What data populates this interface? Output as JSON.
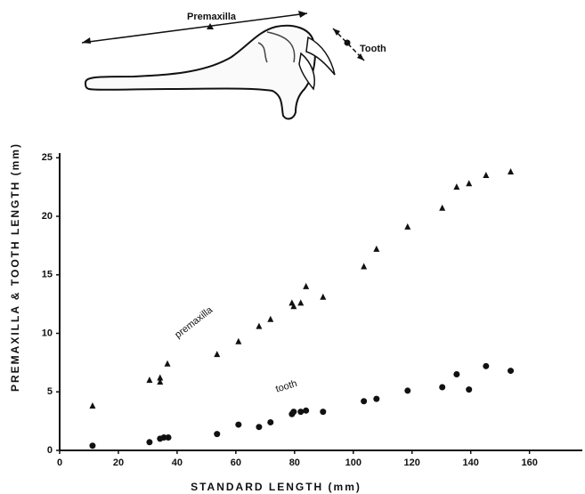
{
  "illustration": {
    "premaxilla_label": "Premaxilla",
    "tooth_label": "Tooth"
  },
  "chart_data": {
    "type": "scatter",
    "xlabel": "STANDARD LENGTH (mm)",
    "ylabel": "PREMAXILLA & TOOTH LENGTH (mm)",
    "xlim": [
      0,
      178
    ],
    "ylim": [
      0,
      25.4
    ],
    "xticks": [
      0,
      20,
      40,
      60,
      80,
      100,
      120,
      140,
      160
    ],
    "yticks": [
      0,
      5,
      10,
      15,
      20,
      25
    ],
    "annotations": [
      {
        "text": "premaxilla"
      },
      {
        "text": "tooth"
      }
    ],
    "series": [
      {
        "marker": "triangle",
        "color": "#111111",
        "x": [
          11.2,
          30.6,
          34.2,
          34.2,
          36.7,
          53.6,
          60.9,
          67.9,
          71.8,
          79.1,
          79.7,
          82.1,
          83.9,
          89.7,
          103.6,
          107.9,
          118.5,
          130.3,
          135.2,
          139.4,
          145.2,
          153.6
        ],
        "values": [
          3.8,
          6.0,
          6.2,
          5.85,
          7.4,
          8.2,
          9.3,
          10.6,
          11.2,
          12.6,
          12.3,
          12.6,
          14.0,
          13.1,
          15.7,
          17.2,
          19.1,
          20.7,
          22.5,
          22.8,
          23.5,
          23.8
        ]
      },
      {
        "marker": "circle",
        "color": "#111111",
        "x": [
          11.2,
          30.6,
          34.2,
          35.5,
          37.0,
          53.6,
          60.9,
          67.9,
          71.8,
          79.1,
          79.7,
          82.1,
          83.9,
          89.7,
          103.6,
          107.9,
          118.5,
          130.3,
          135.2,
          139.4,
          145.2,
          153.6
        ],
        "values": [
          0.4,
          0.7,
          1.0,
          1.1,
          1.1,
          1.4,
          2.2,
          2.0,
          2.4,
          3.1,
          3.3,
          3.3,
          3.4,
          3.3,
          4.2,
          4.4,
          5.1,
          5.4,
          6.5,
          5.2,
          7.2,
          6.8
        ]
      }
    ]
  }
}
